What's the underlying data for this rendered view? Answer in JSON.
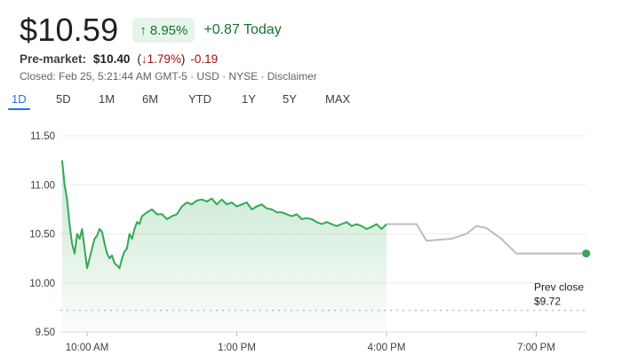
{
  "quote": {
    "price": "$10.59",
    "change_pct": "8.95%",
    "change_today": "+0.87 Today",
    "premarket_label": "Pre-market:",
    "premarket_price": "$10.40",
    "premarket_pct": "1.79%",
    "premarket_change": "-0.19",
    "closed_line": "Closed: Feb 25, 5:21:44 AM GMT-5 · USD · NYSE · Disclaimer"
  },
  "colors": {
    "up": "#137333",
    "line": "#34a853",
    "down": "#a50e0e",
    "after_hours": "#bdbdbd",
    "tab_active": "#1a73e8"
  },
  "tabs": [
    {
      "label": "1D",
      "active": true
    },
    {
      "label": "5D",
      "active": false
    },
    {
      "label": "1M",
      "active": false
    },
    {
      "label": "6M",
      "active": false
    },
    {
      "label": "YTD",
      "active": false
    },
    {
      "label": "1Y",
      "active": false
    },
    {
      "label": "5Y",
      "active": false
    },
    {
      "label": "MAX",
      "active": false
    }
  ],
  "chart_data": {
    "type": "line",
    "title": "",
    "xlabel": "",
    "ylabel": "",
    "ylim": [
      9.5,
      11.5
    ],
    "yticks": [
      "11.50",
      "11.00",
      "10.50",
      "10.00",
      "9.50"
    ],
    "xlim": [
      9.5,
      20.5
    ],
    "xticks": [
      {
        "x": 10,
        "label": "10:00 AM"
      },
      {
        "x": 13,
        "label": "1:00 PM"
      },
      {
        "x": 16,
        "label": "4:00 PM"
      },
      {
        "x": 19,
        "label": "7:00 PM"
      }
    ],
    "grid": true,
    "prev_close": {
      "label": "Prev close",
      "value_label": "$9.72",
      "value": 9.72
    },
    "series": [
      {
        "market": "regular",
        "x": [
          9.5,
          9.55,
          9.6,
          9.65,
          9.7,
          9.75,
          9.8,
          9.85,
          9.9,
          9.95,
          10.0,
          10.05,
          10.1,
          10.15,
          10.2,
          10.25,
          10.3,
          10.35,
          10.4,
          10.45,
          10.5,
          10.55,
          10.6,
          10.65,
          10.7,
          10.75,
          10.8,
          10.85,
          10.9,
          10.95,
          11.0,
          11.05,
          11.1,
          11.15,
          11.2,
          11.3,
          11.4,
          11.5,
          11.6,
          11.7,
          11.8,
          11.9,
          12.0,
          12.1,
          12.2,
          12.3,
          12.4,
          12.5,
          12.6,
          12.7,
          12.8,
          12.9,
          13.0,
          13.1,
          13.2,
          13.3,
          13.4,
          13.5,
          13.6,
          13.7,
          13.8,
          13.9,
          14.0,
          14.1,
          14.2,
          14.3,
          14.4,
          14.5,
          14.6,
          14.7,
          14.8,
          14.9,
          15.0,
          15.1,
          15.2,
          15.3,
          15.4,
          15.5,
          15.6,
          15.7,
          15.8,
          15.9,
          16.0
        ],
        "y": [
          11.25,
          11.0,
          10.85,
          10.6,
          10.4,
          10.3,
          10.5,
          10.45,
          10.55,
          10.35,
          10.15,
          10.25,
          10.35,
          10.45,
          10.48,
          10.55,
          10.52,
          10.4,
          10.3,
          10.25,
          10.28,
          10.2,
          10.18,
          10.15,
          10.25,
          10.32,
          10.35,
          10.5,
          10.45,
          10.55,
          10.62,
          10.6,
          10.68,
          10.7,
          10.72,
          10.75,
          10.7,
          10.7,
          10.65,
          10.68,
          10.7,
          10.78,
          10.82,
          10.8,
          10.84,
          10.85,
          10.83,
          10.86,
          10.8,
          10.85,
          10.8,
          10.82,
          10.78,
          10.8,
          10.82,
          10.75,
          10.78,
          10.8,
          10.76,
          10.75,
          10.72,
          10.72,
          10.7,
          10.68,
          10.7,
          10.65,
          10.66,
          10.65,
          10.62,
          10.6,
          10.62,
          10.6,
          10.58,
          10.6,
          10.62,
          10.58,
          10.6,
          10.58,
          10.55,
          10.57,
          10.6,
          10.55,
          10.6
        ]
      },
      {
        "market": "after_hours",
        "x": [
          16.0,
          16.6,
          16.8,
          17.3,
          17.6,
          17.8,
          18.0,
          18.3,
          18.6,
          20.0
        ],
        "y": [
          10.6,
          10.6,
          10.43,
          10.45,
          10.5,
          10.58,
          10.56,
          10.45,
          10.3,
          10.3
        ]
      }
    ]
  }
}
